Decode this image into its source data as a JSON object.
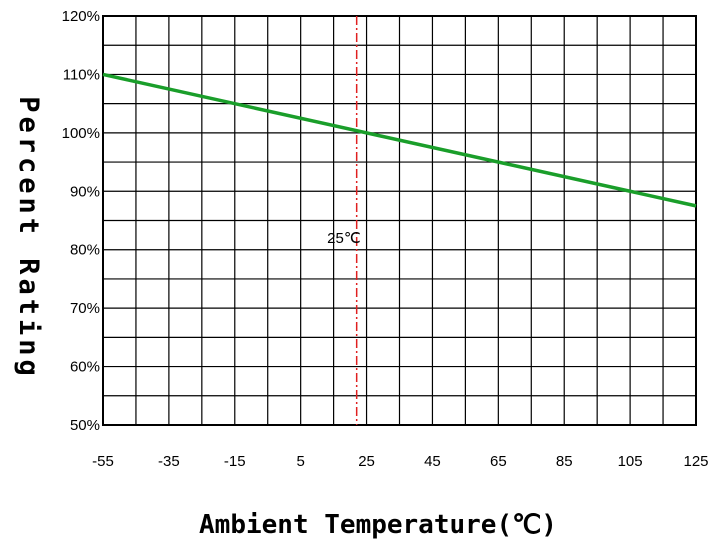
{
  "chart_data": {
    "type": "line",
    "title": "",
    "xlabel": "Ambient Temperature(℃)",
    "ylabel": "Percent Rating",
    "xlim": [
      -55,
      125
    ],
    "ylim": [
      50,
      120
    ],
    "x_ticks": [
      -55,
      -35,
      -15,
      5,
      25,
      45,
      65,
      85,
      105,
      125
    ],
    "x_tick_labels": [
      "-55",
      "-35",
      "-15",
      "5",
      "25",
      "45",
      "65",
      "85",
      "105",
      "125"
    ],
    "y_ticks": [
      50,
      60,
      70,
      80,
      90,
      100,
      110,
      120
    ],
    "y_tick_labels": [
      "50%",
      "60%",
      "70%",
      "80%",
      "90%",
      "100%",
      "110%",
      "120%"
    ],
    "grid": true,
    "series": [
      {
        "color": "#1a9e2a",
        "x": [
          -55,
          125
        ],
        "y": [
          110,
          87.5
        ]
      }
    ],
    "reference_line": {
      "x": 22,
      "label": "25℃",
      "color": "#e02020"
    }
  }
}
